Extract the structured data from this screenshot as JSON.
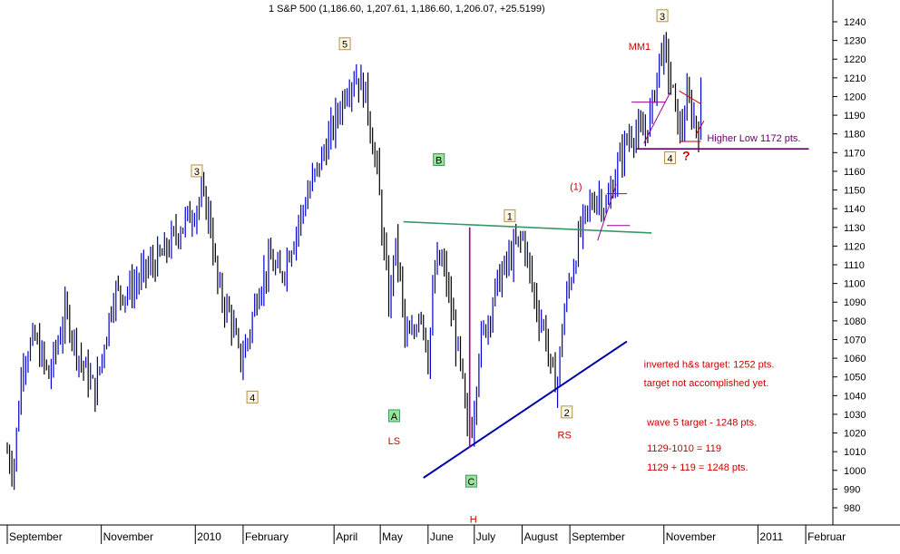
{
  "chart_data": {
    "type": "ohlc",
    "title": "1 S&P 500 (1,186.60, 1,207.61, 1,186.60, 1,206.07, +25.5199)",
    "ylim": [
      970,
      1250
    ],
    "y_ticks": [
      980,
      990,
      1000,
      1010,
      1020,
      1030,
      1040,
      1050,
      1060,
      1070,
      1080,
      1090,
      1100,
      1110,
      1120,
      1130,
      1140,
      1150,
      1160,
      1170,
      1180,
      1190,
      1200,
      1210,
      1220,
      1230,
      1240
    ],
    "x_labels": [
      "September",
      "November",
      "2010",
      "February",
      "April",
      "May",
      "June",
      "July",
      "August",
      "September",
      "November",
      "2011",
      "Februar"
    ],
    "x_label_days": [
      0,
      61,
      122,
      153,
      212,
      242,
      273,
      303,
      334,
      365,
      426,
      487,
      518
    ],
    "x_range_days": [
      0,
      530
    ],
    "price_path": [
      {
        "d": 0,
        "v": 1010
      },
      {
        "d": 4,
        "v": 1000
      },
      {
        "d": 10,
        "v": 1060
      },
      {
        "d": 18,
        "v": 1070
      },
      {
        "d": 27,
        "v": 1050
      },
      {
        "d": 38,
        "v": 1085
      },
      {
        "d": 47,
        "v": 1060
      },
      {
        "d": 57,
        "v": 1042
      },
      {
        "d": 69,
        "v": 1095
      },
      {
        "d": 79,
        "v": 1096
      },
      {
        "d": 90,
        "v": 1107
      },
      {
        "d": 101,
        "v": 1115
      },
      {
        "d": 112,
        "v": 1130
      },
      {
        "d": 122,
        "v": 1140
      },
      {
        "d": 126,
        "v": 1147
      },
      {
        "d": 131,
        "v": 1137
      },
      {
        "d": 137,
        "v": 1096
      },
      {
        "d": 145,
        "v": 1082
      },
      {
        "d": 151,
        "v": 1058
      },
      {
        "d": 156,
        "v": 1070
      },
      {
        "d": 163,
        "v": 1098
      },
      {
        "d": 171,
        "v": 1112
      },
      {
        "d": 177,
        "v": 1103
      },
      {
        "d": 186,
        "v": 1125
      },
      {
        "d": 195,
        "v": 1148
      },
      {
        "d": 203,
        "v": 1165
      },
      {
        "d": 212,
        "v": 1185
      },
      {
        "d": 220,
        "v": 1205
      },
      {
        "d": 226,
        "v": 1212
      },
      {
        "d": 233,
        "v": 1200
      },
      {
        "d": 237,
        "v": 1175
      },
      {
        "d": 240,
        "v": 1160
      },
      {
        "d": 244,
        "v": 1120
      },
      {
        "d": 248,
        "v": 1085
      },
      {
        "d": 251,
        "v": 1122
      },
      {
        "d": 254,
        "v": 1110
      },
      {
        "d": 258,
        "v": 1072
      },
      {
        "d": 263,
        "v": 1070
      },
      {
        "d": 268,
        "v": 1090
      },
      {
        "d": 273,
        "v": 1060
      },
      {
        "d": 278,
        "v": 1112
      },
      {
        "d": 283,
        "v": 1110
      },
      {
        "d": 289,
        "v": 1080
      },
      {
        "d": 295,
        "v": 1050
      },
      {
        "d": 298,
        "v": 1020
      },
      {
        "d": 302,
        "v": 1025
      },
      {
        "d": 306,
        "v": 1065
      },
      {
        "d": 312,
        "v": 1082
      },
      {
        "d": 318,
        "v": 1100
      },
      {
        "d": 324,
        "v": 1110
      },
      {
        "d": 330,
        "v": 1120
      },
      {
        "d": 335,
        "v": 1125
      },
      {
        "d": 339,
        "v": 1105
      },
      {
        "d": 344,
        "v": 1085
      },
      {
        "d": 349,
        "v": 1075
      },
      {
        "d": 353,
        "v": 1050
      },
      {
        "d": 357,
        "v": 1048
      },
      {
        "d": 361,
        "v": 1085
      },
      {
        "d": 366,
        "v": 1105
      },
      {
        "d": 371,
        "v": 1125
      },
      {
        "d": 377,
        "v": 1140
      },
      {
        "d": 383,
        "v": 1148
      },
      {
        "d": 389,
        "v": 1140
      },
      {
        "d": 395,
        "v": 1160
      },
      {
        "d": 401,
        "v": 1175
      },
      {
        "d": 406,
        "v": 1182
      },
      {
        "d": 412,
        "v": 1178
      },
      {
        "d": 418,
        "v": 1192
      },
      {
        "d": 421,
        "v": 1210
      },
      {
        "d": 424,
        "v": 1225
      },
      {
        "d": 427,
        "v": 1222
      },
      {
        "d": 431,
        "v": 1205
      },
      {
        "d": 434,
        "v": 1190
      },
      {
        "d": 437,
        "v": 1180
      },
      {
        "d": 441,
        "v": 1198
      },
      {
        "d": 445,
        "v": 1190
      },
      {
        "d": 448,
        "v": 1180
      },
      {
        "d": 451,
        "v": 1206
      }
    ],
    "lines": [
      {
        "name": "neckline",
        "color": "#339966",
        "from": {
          "d": 257,
          "v": 1133
        },
        "to": {
          "d": 418,
          "v": 1127
        }
      },
      {
        "name": "trendline",
        "color": "#0000aa",
        "from": {
          "d": 270,
          "v": 996
        },
        "to": {
          "d": 402,
          "v": 1069
        }
      },
      {
        "name": "higher-low-support",
        "color": "#660066",
        "from": {
          "d": 408,
          "v": 1172
        },
        "to": {
          "d": 520,
          "v": 1172
        }
      },
      {
        "name": "head-height",
        "color": "#990099",
        "from": {
          "d": 300,
          "v": 1012
        },
        "to": {
          "d": 300,
          "v": 1130
        }
      }
    ],
    "wave_labels": [
      {
        "text": "3",
        "d": 123,
        "v": 1160,
        "style": "box"
      },
      {
        "text": "4",
        "d": 159,
        "v": 1039,
        "style": "box"
      },
      {
        "text": "5",
        "d": 219,
        "v": 1228,
        "style": "box"
      },
      {
        "text": "A",
        "d": 251,
        "v": 1029,
        "style": "box-green"
      },
      {
        "text": "B",
        "d": 280,
        "v": 1166,
        "style": "box-green"
      },
      {
        "text": "C",
        "d": 301,
        "v": 994,
        "style": "box-green"
      },
      {
        "text": "1",
        "d": 326,
        "v": 1136,
        "style": "box"
      },
      {
        "text": "2",
        "d": 363,
        "v": 1031,
        "style": "box"
      },
      {
        "text": "3",
        "d": 425,
        "v": 1243,
        "style": "box"
      },
      {
        "text": "4",
        "d": 430,
        "v": 1167,
        "style": "box"
      }
    ],
    "text_annotations": [
      {
        "text": "MM1",
        "d": 403,
        "v": 1225,
        "color": "#cc0000"
      },
      {
        "text": "(1)",
        "d": 365,
        "v": 1150,
        "color": "#cc0000"
      },
      {
        "text": "LS",
        "d": 247,
        "v": 1014,
        "color": "#cc0000"
      },
      {
        "text": "H",
        "d": 300,
        "v": 972,
        "color": "#cc0000"
      },
      {
        "text": "RS",
        "d": 357,
        "v": 1017,
        "color": "#cc0000"
      },
      {
        "text": "?",
        "d": 438,
        "v": 1166,
        "color": "#cc0000"
      },
      {
        "text": "Higher Low   1172 pts.",
        "d": 454,
        "v": 1176,
        "color": "#660066"
      },
      {
        "text": "inverted h&s target: 1252 pts.",
        "d": 413,
        "v": 1055,
        "color": "#cc0000"
      },
      {
        "text": "target not accomplished yet.",
        "d": 413,
        "v": 1045,
        "color": "#cc0000"
      },
      {
        "text": "wave 5 target - 1248 pts.",
        "d": 415,
        "v": 1024,
        "color": "#cc0000"
      },
      {
        "text": "1129-1010 = 119",
        "d": 415,
        "v": 1010,
        "color": "#cc0000"
      },
      {
        "text": "1129 + 119 = 1248 pts.",
        "d": 415,
        "v": 1000,
        "color": "#cc0000"
      }
    ],
    "colors": {
      "up_bar": "#0000cc",
      "down_bar": "#000000",
      "axis": "#000000",
      "background": "#ffffff"
    },
    "grid": false
  }
}
